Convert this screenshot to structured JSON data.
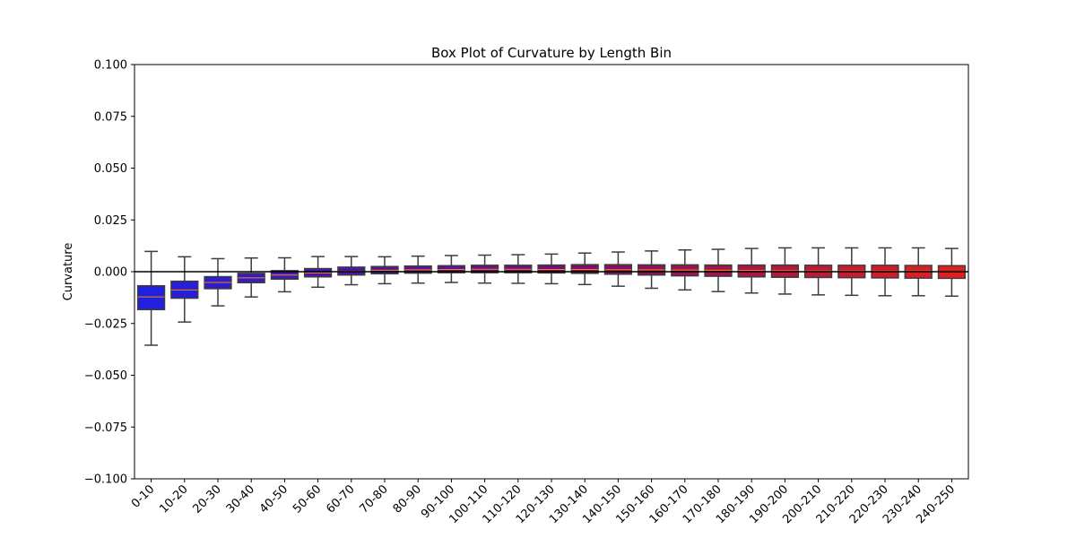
{
  "chart_data": {
    "type": "box",
    "title": "Box Plot of Curvature by Length Bin",
    "xlabel": "",
    "ylabel": "Curvature",
    "ylim": [
      -0.1,
      0.1
    ],
    "yticks": [
      -0.1,
      -0.075,
      -0.05,
      -0.025,
      0.0,
      0.025,
      0.05,
      0.075,
      0.1
    ],
    "ytick_labels": [
      "−0.100",
      "−0.075",
      "−0.050",
      "−0.025",
      "0.000",
      "0.025",
      "0.050",
      "0.075",
      "0.100"
    ],
    "reference_line_y": 0,
    "grid": false,
    "categories": [
      "0-10",
      "10-20",
      "20-30",
      "30-40",
      "40-50",
      "50-60",
      "60-70",
      "70-80",
      "80-90",
      "90-100",
      "100-110",
      "110-120",
      "120-130",
      "130-140",
      "140-150",
      "150-160",
      "160-170",
      "170-180",
      "180-190",
      "190-200",
      "200-210",
      "210-220",
      "220-230",
      "230-240",
      "240-250"
    ],
    "boxes": [
      {
        "whisker_low": -0.0355,
        "q1": -0.0183,
        "median": -0.0122,
        "q3": -0.0068,
        "whisker_high": 0.0098
      },
      {
        "whisker_low": -0.0243,
        "q1": -0.0128,
        "median": -0.0088,
        "q3": -0.0046,
        "whisker_high": 0.0072
      },
      {
        "whisker_low": -0.0165,
        "q1": -0.0082,
        "median": -0.0052,
        "q3": -0.0024,
        "whisker_high": 0.0063
      },
      {
        "whisker_low": -0.0122,
        "q1": -0.0053,
        "median": -0.003,
        "q3": -0.0008,
        "whisker_high": 0.0066
      },
      {
        "whisker_low": -0.0097,
        "q1": -0.0036,
        "median": -0.0016,
        "q3": 0.0005,
        "whisker_high": 0.0067
      },
      {
        "whisker_low": -0.0075,
        "q1": -0.0025,
        "median": -0.0006,
        "q3": 0.0015,
        "whisker_high": 0.0073
      },
      {
        "whisker_low": -0.0063,
        "q1": -0.0016,
        "median": 0.0002,
        "q3": 0.0022,
        "whisker_high": 0.0073
      },
      {
        "whisker_low": -0.0058,
        "q1": -0.001,
        "median": 0.0007,
        "q3": 0.0025,
        "whisker_high": 0.0072
      },
      {
        "whisker_low": -0.0055,
        "q1": -0.0007,
        "median": 0.0009,
        "q3": 0.0027,
        "whisker_high": 0.0075
      },
      {
        "whisker_low": -0.0052,
        "q1": -0.0005,
        "median": 0.0011,
        "q3": 0.0029,
        "whisker_high": 0.0078
      },
      {
        "whisker_low": -0.0055,
        "q1": -0.0005,
        "median": 0.0012,
        "q3": 0.0031,
        "whisker_high": 0.008
      },
      {
        "whisker_low": -0.0056,
        "q1": -0.0005,
        "median": 0.0012,
        "q3": 0.0031,
        "whisker_high": 0.0082
      },
      {
        "whisker_low": -0.0058,
        "q1": -0.0006,
        "median": 0.0011,
        "q3": 0.0032,
        "whisker_high": 0.0085
      },
      {
        "whisker_low": -0.0062,
        "q1": -0.0008,
        "median": 0.0011,
        "q3": 0.0034,
        "whisker_high": 0.009
      },
      {
        "whisker_low": -0.007,
        "q1": -0.0012,
        "median": 0.001,
        "q3": 0.0034,
        "whisker_high": 0.0095
      },
      {
        "whisker_low": -0.008,
        "q1": -0.0016,
        "median": 0.0009,
        "q3": 0.0033,
        "whisker_high": 0.01
      },
      {
        "whisker_low": -0.0088,
        "q1": -0.002,
        "median": 0.0008,
        "q3": 0.0033,
        "whisker_high": 0.0105
      },
      {
        "whisker_low": -0.0096,
        "q1": -0.0022,
        "median": 0.0007,
        "q3": 0.0032,
        "whisker_high": 0.0108
      },
      {
        "whisker_low": -0.0103,
        "q1": -0.0025,
        "median": 0.0006,
        "q3": 0.0032,
        "whisker_high": 0.0112
      },
      {
        "whisker_low": -0.0108,
        "q1": -0.0027,
        "median": 0.0005,
        "q3": 0.0032,
        "whisker_high": 0.0115
      },
      {
        "whisker_low": -0.0112,
        "q1": -0.0028,
        "median": 0.0004,
        "q3": 0.0031,
        "whisker_high": 0.0115
      },
      {
        "whisker_low": -0.0114,
        "q1": -0.0029,
        "median": 0.0004,
        "q3": 0.0031,
        "whisker_high": 0.0115
      },
      {
        "whisker_low": -0.0116,
        "q1": -0.003,
        "median": 0.0003,
        "q3": 0.0031,
        "whisker_high": 0.0115
      },
      {
        "whisker_low": -0.0116,
        "q1": -0.0031,
        "median": 0.0003,
        "q3": 0.003,
        "whisker_high": 0.0115
      },
      {
        "whisker_low": -0.0118,
        "q1": -0.0032,
        "median": 0.0002,
        "q3": 0.0029,
        "whisker_high": 0.0112
      }
    ],
    "colors": {
      "box_start": "#0000ff",
      "box_end": "#ff0000",
      "box_edge": "#3d3d3d",
      "median": "#ff7f0e",
      "whisker": "#3d3d3d",
      "reference_line": "#000000",
      "axis": "#000000"
    }
  }
}
